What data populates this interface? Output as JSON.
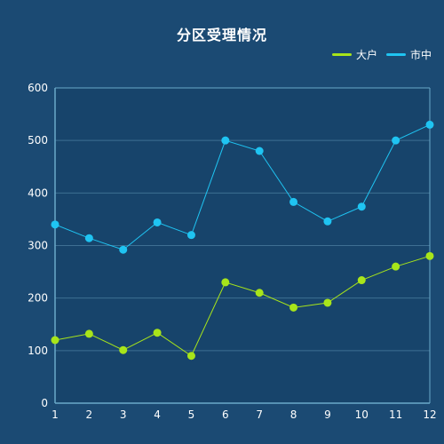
{
  "chart_data": {
    "type": "line",
    "title": "分区受理情况",
    "categories": [
      "1",
      "2",
      "3",
      "4",
      "5",
      "6",
      "7",
      "8",
      "9",
      "10",
      "11",
      "12"
    ],
    "series": [
      {
        "name": "大户",
        "color": "#a8e51a",
        "values": [
          120,
          132,
          101,
          134,
          90,
          230,
          210,
          182,
          191,
          234,
          260,
          280
        ]
      },
      {
        "name": "市中",
        "color": "#1fc4f2",
        "values": [
          340,
          314,
          292,
          344,
          320,
          500,
          480,
          383,
          346,
          374,
          500,
          530
        ]
      }
    ],
    "yticks": [
      "0",
      "100",
      "200",
      "300",
      "400",
      "500",
      "600"
    ],
    "ylim": [
      0,
      600
    ],
    "legend_position": "top-right",
    "grid": true
  }
}
